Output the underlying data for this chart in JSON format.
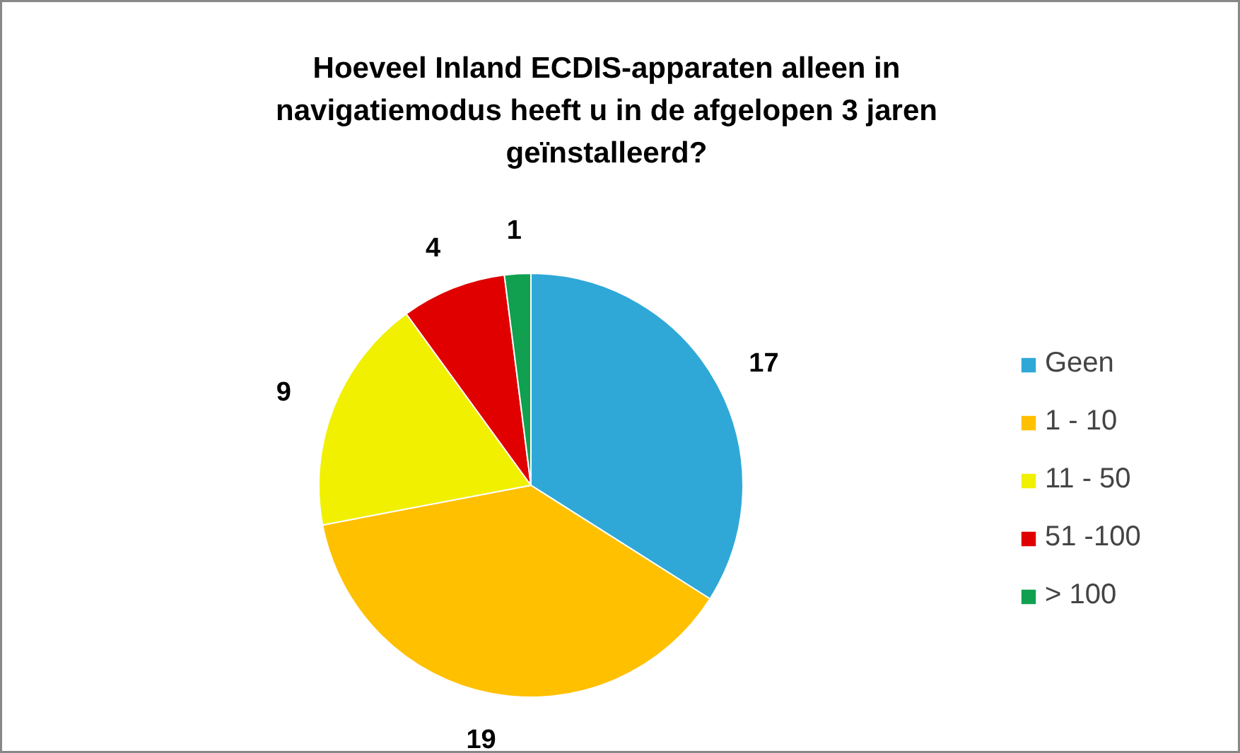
{
  "chart_data": {
    "type": "pie",
    "title": "Hoeveel Inland ECDIS-apparaten alleen in navigatiemodus heeft u in de afgelopen 3 jaren geïnstalleerd?",
    "categories": [
      "Geen",
      "1 - 10",
      "11 - 50",
      "51 -100",
      "> 100"
    ],
    "values": [
      17,
      19,
      9,
      4,
      1
    ],
    "colors": [
      "#2fa8d8",
      "#ffc000",
      "#f0f000",
      "#e00000",
      "#10a050"
    ],
    "data_labels": true,
    "legend": "right"
  }
}
